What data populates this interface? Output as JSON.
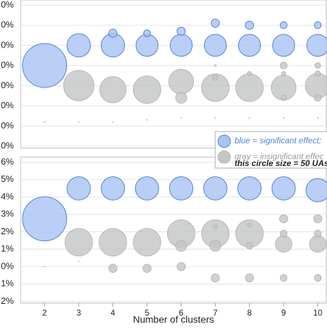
{
  "chart_data": [
    {
      "type": "scatter",
      "xlim": [
        1.3,
        10.25
      ],
      "ylim": [
        -1,
        72.5
      ],
      "yticks": [
        {
          "value": 70,
          "label": "0%"
        },
        {
          "value": 60,
          "label": "0%"
        },
        {
          "value": 50,
          "label": "0%"
        },
        {
          "value": 40,
          "label": "0%"
        },
        {
          "value": 30,
          "label": "0%"
        },
        {
          "value": 20,
          "label": "0%"
        },
        {
          "value": 10,
          "label": "0%"
        },
        {
          "value": 0,
          "label": "0%"
        }
      ],
      "grid": true,
      "series": [
        {
          "name": "gray = insignificant effec",
          "color": "#c3c6c4",
          "stroke": "#b4b7b5",
          "x": [
            3,
            4,
            5,
            5,
            6,
            6,
            7,
            7,
            7,
            8,
            8,
            9,
            9,
            9,
            9,
            10,
            10,
            10,
            10
          ],
          "values": [
            30,
            28,
            30,
            28,
            32,
            24,
            29,
            34,
            40,
            29,
            36,
            29,
            40,
            36,
            24,
            30,
            40,
            36,
            24
          ],
          "sizes": [
            299,
            223,
            1,
            247,
            200,
            40,
            247,
            10,
            2.5,
            247,
            5.6,
            200,
            15,
            5.6,
            10,
            200,
            10,
            10,
            15
          ]
        },
        {
          "name": "blue = significant effect;",
          "color": "#a8c3f2",
          "stroke": "#4f7fd6",
          "x": [
            2,
            3,
            4,
            4,
            5,
            5,
            6,
            6,
            7,
            7,
            8,
            8,
            9,
            9,
            10,
            10,
            2,
            3,
            4,
            5,
            6,
            7,
            8,
            9,
            10
          ],
          "values": [
            40,
            50,
            50,
            56,
            50,
            56,
            50,
            57,
            50,
            61,
            50,
            60,
            50,
            60,
            50,
            60,
            12,
            12,
            12,
            13,
            14,
            14,
            14,
            14,
            14
          ],
          "sizes": [
            632,
            178,
            178,
            22,
            158,
            15,
            158,
            22,
            158,
            22,
            158,
            22,
            158,
            15,
            158,
            15,
            1,
            1,
            1,
            1,
            1,
            1,
            1,
            1,
            1
          ]
        }
      ],
      "annotation": "this circle size = 50 UAs",
      "legend_size": 50
    },
    {
      "type": "scatter",
      "xlim": [
        1.3,
        10.25
      ],
      "ylim": [
        -2.1,
        6.3
      ],
      "xticks": [
        2,
        3,
        4,
        5,
        6,
        7,
        8,
        9,
        10
      ],
      "yticks": [
        {
          "value": 6,
          "label": "6%"
        },
        {
          "value": 5,
          "label": "5%"
        },
        {
          "value": 4,
          "label": "4%"
        },
        {
          "value": 3,
          "label": "3%"
        },
        {
          "value": 2,
          "label": "2%"
        },
        {
          "value": 1,
          "label": "1%"
        },
        {
          "value": 0,
          "label": "0%"
        },
        {
          "value": -1,
          "label": "1%"
        },
        {
          "value": -2,
          "label": "2%"
        }
      ],
      "grid": true,
      "xlabel": "Number of clusters",
      "series": [
        {
          "color": "#c3c6c4",
          "stroke": "#b4b7b5",
          "x": [
            2,
            3,
            3,
            4,
            4,
            5,
            5,
            6,
            6,
            6,
            7,
            7,
            7,
            7,
            8,
            8,
            8,
            8,
            9,
            9,
            9,
            9,
            10,
            10,
            10,
            10
          ],
          "values": [
            0,
            0.3,
            1.4,
            1.4,
            -0.1,
            1.4,
            -0.1,
            1.9,
            1.2,
            0,
            1.9,
            2.3,
            1.2,
            -0.65,
            1.9,
            2.4,
            1.2,
            -0.65,
            1.3,
            2.75,
            1.9,
            -0.65,
            1.3,
            2.75,
            1.9,
            -0.65
          ],
          "sizes": [
            0.6,
            0.6,
            247,
            247,
            22,
            247,
            22,
            247,
            40,
            22,
            247,
            5.6,
            40,
            22,
            247,
            5.6,
            15,
            22,
            89,
            22,
            15,
            15,
            89,
            22,
            15,
            15
          ]
        },
        {
          "color": "#a8c3f2",
          "stroke": "#4f7fd6",
          "x": [
            2,
            3,
            4,
            5,
            6,
            7,
            8,
            9,
            10
          ],
          "values": [
            2.75,
            4.5,
            4.5,
            4.5,
            4.5,
            4.5,
            4.5,
            4.5,
            4.4
          ],
          "sizes": [
            632,
            178,
            178,
            178,
            178,
            178,
            178,
            178,
            178
          ]
        }
      ]
    }
  ]
}
